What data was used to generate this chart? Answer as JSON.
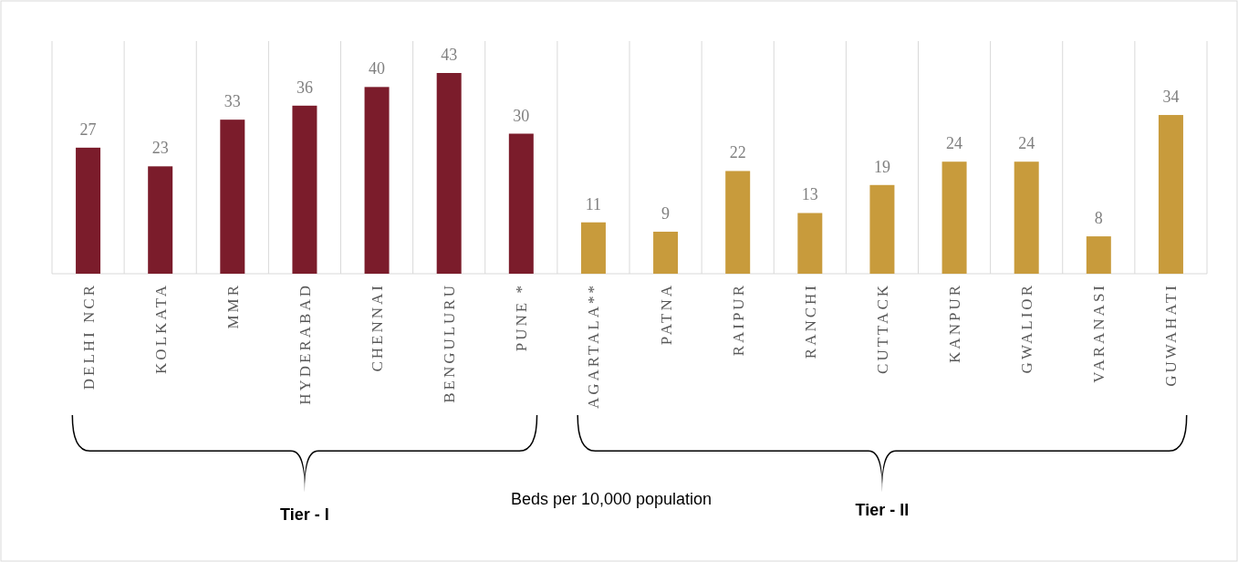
{
  "chart_data": {
    "type": "bar",
    "xlabel": "Beds per 10,000 population",
    "categories": [
      "DELHI NCR",
      "KOLKATA",
      "MMR",
      "HYDERABAD",
      "CHENNAI",
      "BENGULURU",
      "PUNE *",
      "AGARTALA**",
      "PATNA",
      "RAIPUR",
      "RANCHI",
      "CUTTACK",
      "KANPUR",
      "GWALIOR",
      "VARANASI",
      "GUWAHATI"
    ],
    "values": [
      27,
      23,
      33,
      36,
      40,
      43,
      30,
      11,
      9,
      22,
      13,
      19,
      24,
      24,
      8,
      34
    ],
    "colors": [
      "#7b1c2b",
      "#7b1c2b",
      "#7b1c2b",
      "#7b1c2b",
      "#7b1c2b",
      "#7b1c2b",
      "#7b1c2b",
      "#c89b3c",
      "#c89b3c",
      "#c89b3c",
      "#c89b3c",
      "#c89b3c",
      "#c89b3c",
      "#c89b3c",
      "#c89b3c",
      "#c89b3c"
    ],
    "data_labels": true,
    "grid": "x",
    "annotations": [
      "Tier - I",
      "Tier - II"
    ]
  }
}
